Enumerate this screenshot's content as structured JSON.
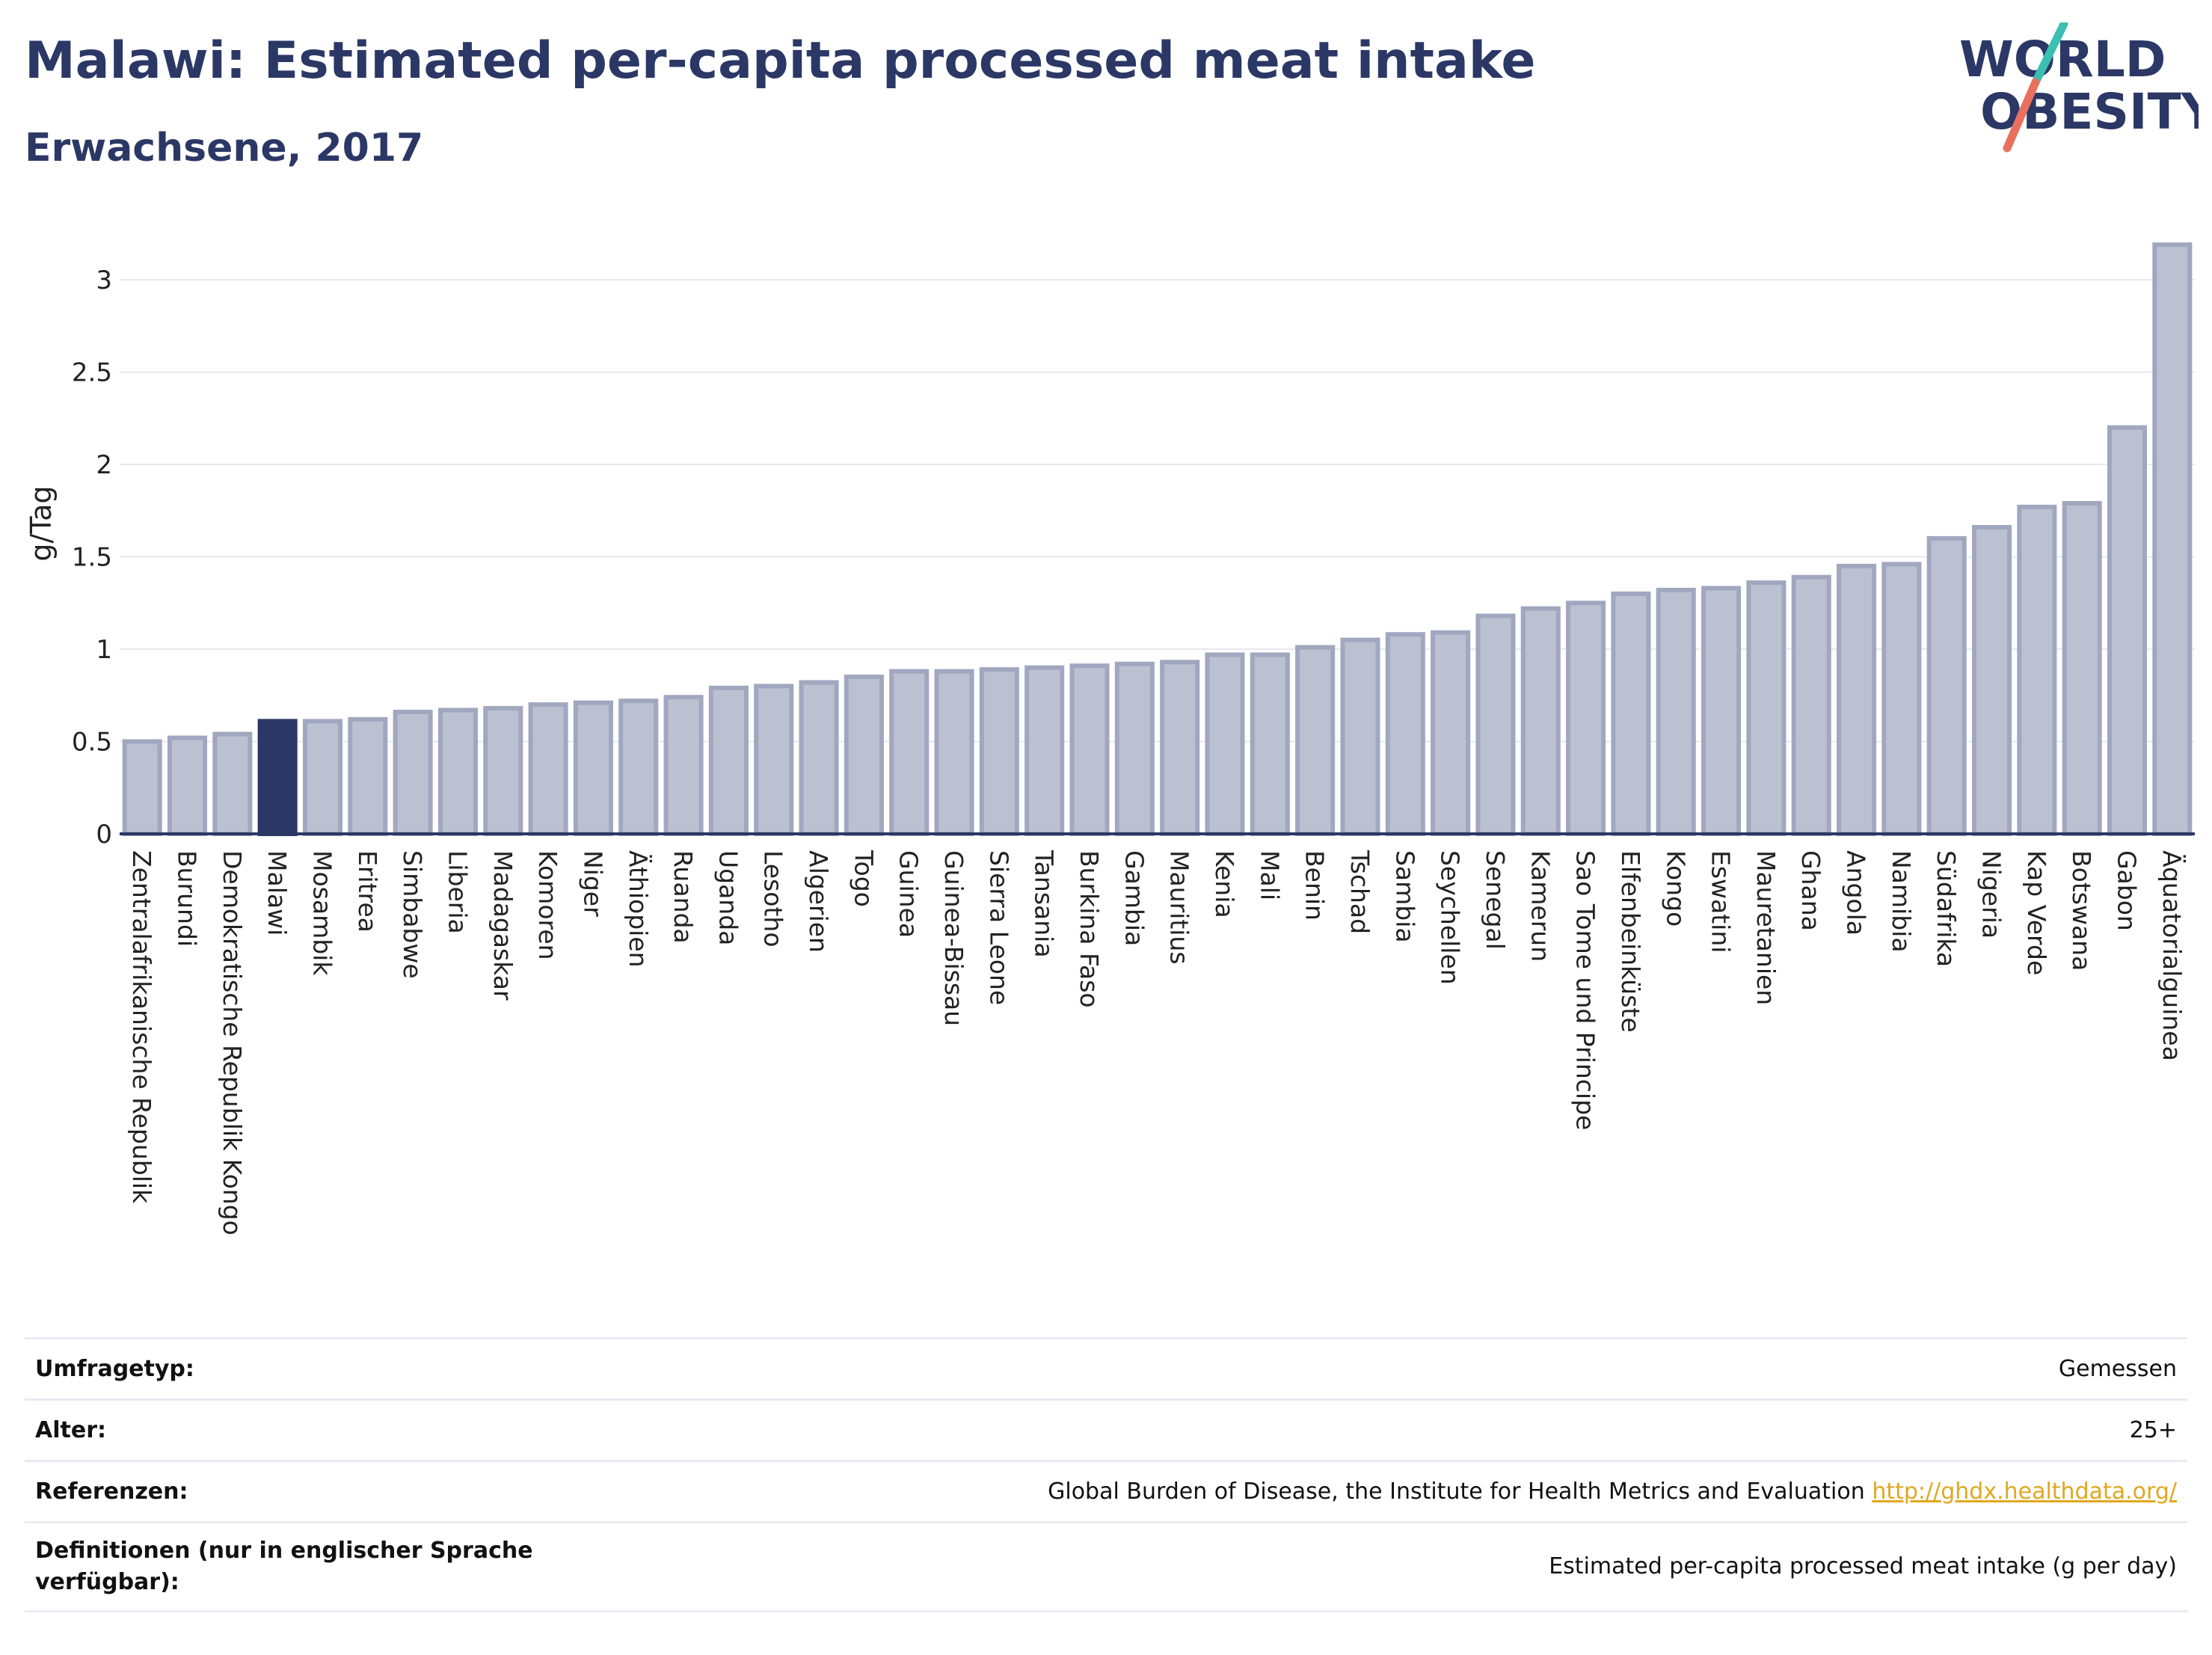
{
  "header": {
    "title": "Malawi: Estimated per-capita processed meat intake",
    "subtitle": "Erwachsene, 2017"
  },
  "logo": {
    "line1": "WORLD",
    "line2": "OBESITY",
    "colors": {
      "text": "#2b3866",
      "slash_top": "#3bbfb3",
      "slash_bottom": "#e8705d"
    }
  },
  "colors": {
    "bar_fill": "#bcc1d1",
    "bar_stroke": "#a0a7bf",
    "highlight_fill": "#2b3866",
    "grid": "#e6e8ef",
    "axis": "#2b3866"
  },
  "chart_data": {
    "type": "bar",
    "ylabel": "g/Tag",
    "ylim": [
      0,
      3.3
    ],
    "yticks": [
      0,
      0.5,
      1,
      1.5,
      2,
      2.5,
      3
    ],
    "ytick_labels": [
      "0",
      "0.5",
      "1",
      "1.5",
      "2",
      "2.5",
      "3"
    ],
    "grid": true,
    "highlight": "Malawi",
    "categories": [
      "Zentralafrikanische Republik",
      "Burundi",
      "Demokratische Republik Kongo",
      "Malawi",
      "Mosambik",
      "Eritrea",
      "Simbabwe",
      "Liberia",
      "Madagaskar",
      "Komoren",
      "Niger",
      "Äthiopien",
      "Ruanda",
      "Uganda",
      "Lesotho",
      "Algerien",
      "Togo",
      "Guinea",
      "Guinea-Bissau",
      "Sierra Leone",
      "Tansania",
      "Burkina Faso",
      "Gambia",
      "Mauritius",
      "Kenia",
      "Mali",
      "Benin",
      "Tschad",
      "Sambia",
      "Seychellen",
      "Senegal",
      "Kamerun",
      "Sao Tome und Principe",
      "Elfenbeinküste",
      "Kongo",
      "Eswatini",
      "Mauretanien",
      "Ghana",
      "Angola",
      "Namibia",
      "Südafrika",
      "Nigeria",
      "Kap Verde",
      "Botswana",
      "Gabon",
      "Äquatorialguinea"
    ],
    "values": [
      0.5,
      0.52,
      0.54,
      0.61,
      0.61,
      0.62,
      0.66,
      0.67,
      0.68,
      0.7,
      0.71,
      0.72,
      0.74,
      0.79,
      0.8,
      0.82,
      0.85,
      0.88,
      0.88,
      0.89,
      0.9,
      0.91,
      0.92,
      0.93,
      0.97,
      0.97,
      1.01,
      1.05,
      1.08,
      1.09,
      1.18,
      1.22,
      1.25,
      1.3,
      1.32,
      1.33,
      1.36,
      1.39,
      1.45,
      1.46,
      1.6,
      1.66,
      1.77,
      1.79,
      2.2,
      3.19
    ]
  },
  "meta": [
    {
      "key": "Umfragetyp:",
      "value": "Gemessen"
    },
    {
      "key": "Alter:",
      "value": "25+"
    },
    {
      "key": "Referenzen:",
      "value": "Global Burden of Disease, the Institute for Health Metrics and Evaluation",
      "link": "http://ghdx.healthdata.org/"
    },
    {
      "key": "Definitionen (nur in englischer Sprache verfügbar):",
      "value": "Estimated per-capita processed meat intake (g per day)"
    }
  ]
}
